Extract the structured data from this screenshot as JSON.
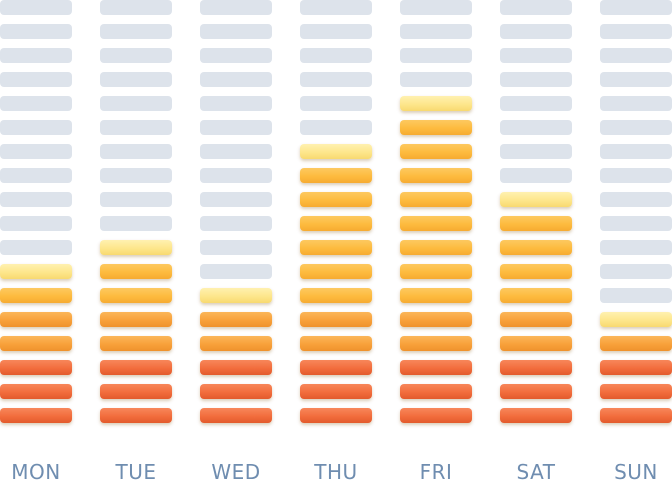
{
  "chart_data": {
    "type": "bar",
    "title": "",
    "xlabel": "",
    "ylabel": "",
    "ylim": [
      0,
      18
    ],
    "categories": [
      "MON",
      "TUE",
      "WED",
      "THU",
      "FRI",
      "SAT",
      "SUN"
    ],
    "values": [
      7,
      8,
      6,
      12,
      14,
      10,
      5
    ],
    "segment_levels": {
      "dark_orange": [
        1,
        2,
        3
      ],
      "orange": [
        4,
        5
      ],
      "amber": [
        6,
        17
      ],
      "top_highlight": "pale-yellow"
    },
    "colors": {
      "empty": "#dde3eb",
      "dark_orange": "#f26d3d",
      "orange": "#f8a13a",
      "amber": "#fdbb3f",
      "top": "#fde68c",
      "label": "#6f8db0"
    },
    "grid": false,
    "legend": "none"
  }
}
